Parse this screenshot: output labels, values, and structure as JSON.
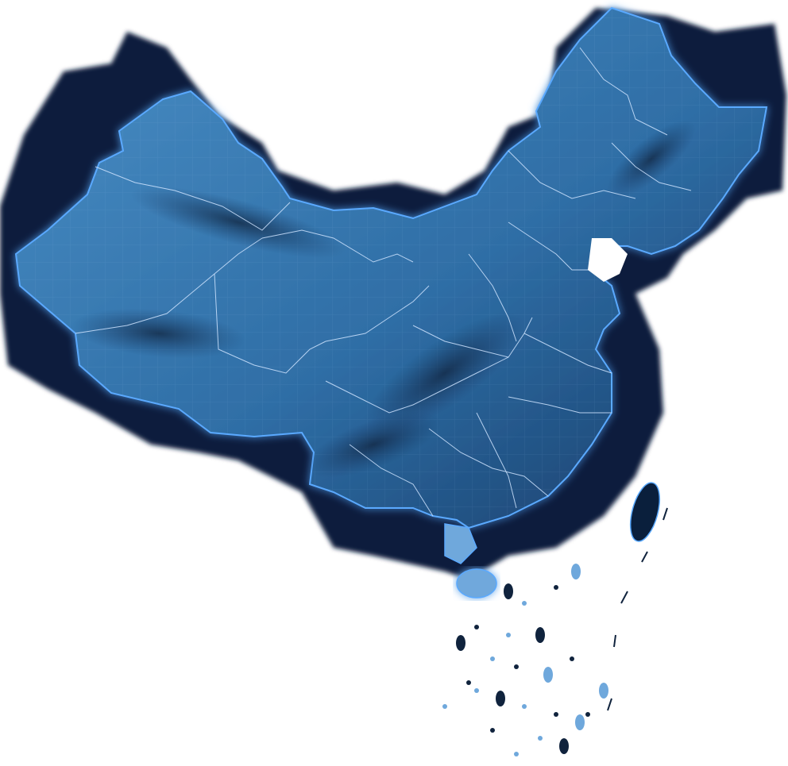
{
  "map": {
    "colors": {
      "background": "#ffffff",
      "shadow": "#0a1f3c",
      "land_light": "#4a8fc6",
      "land_mid": "#2f6ea6",
      "land_dark": "#163a66",
      "border_glow": "#5aa9ff",
      "province_line": "#cfe4ff",
      "island": "#6fa8dc",
      "island_dark": "#10233d"
    }
  }
}
